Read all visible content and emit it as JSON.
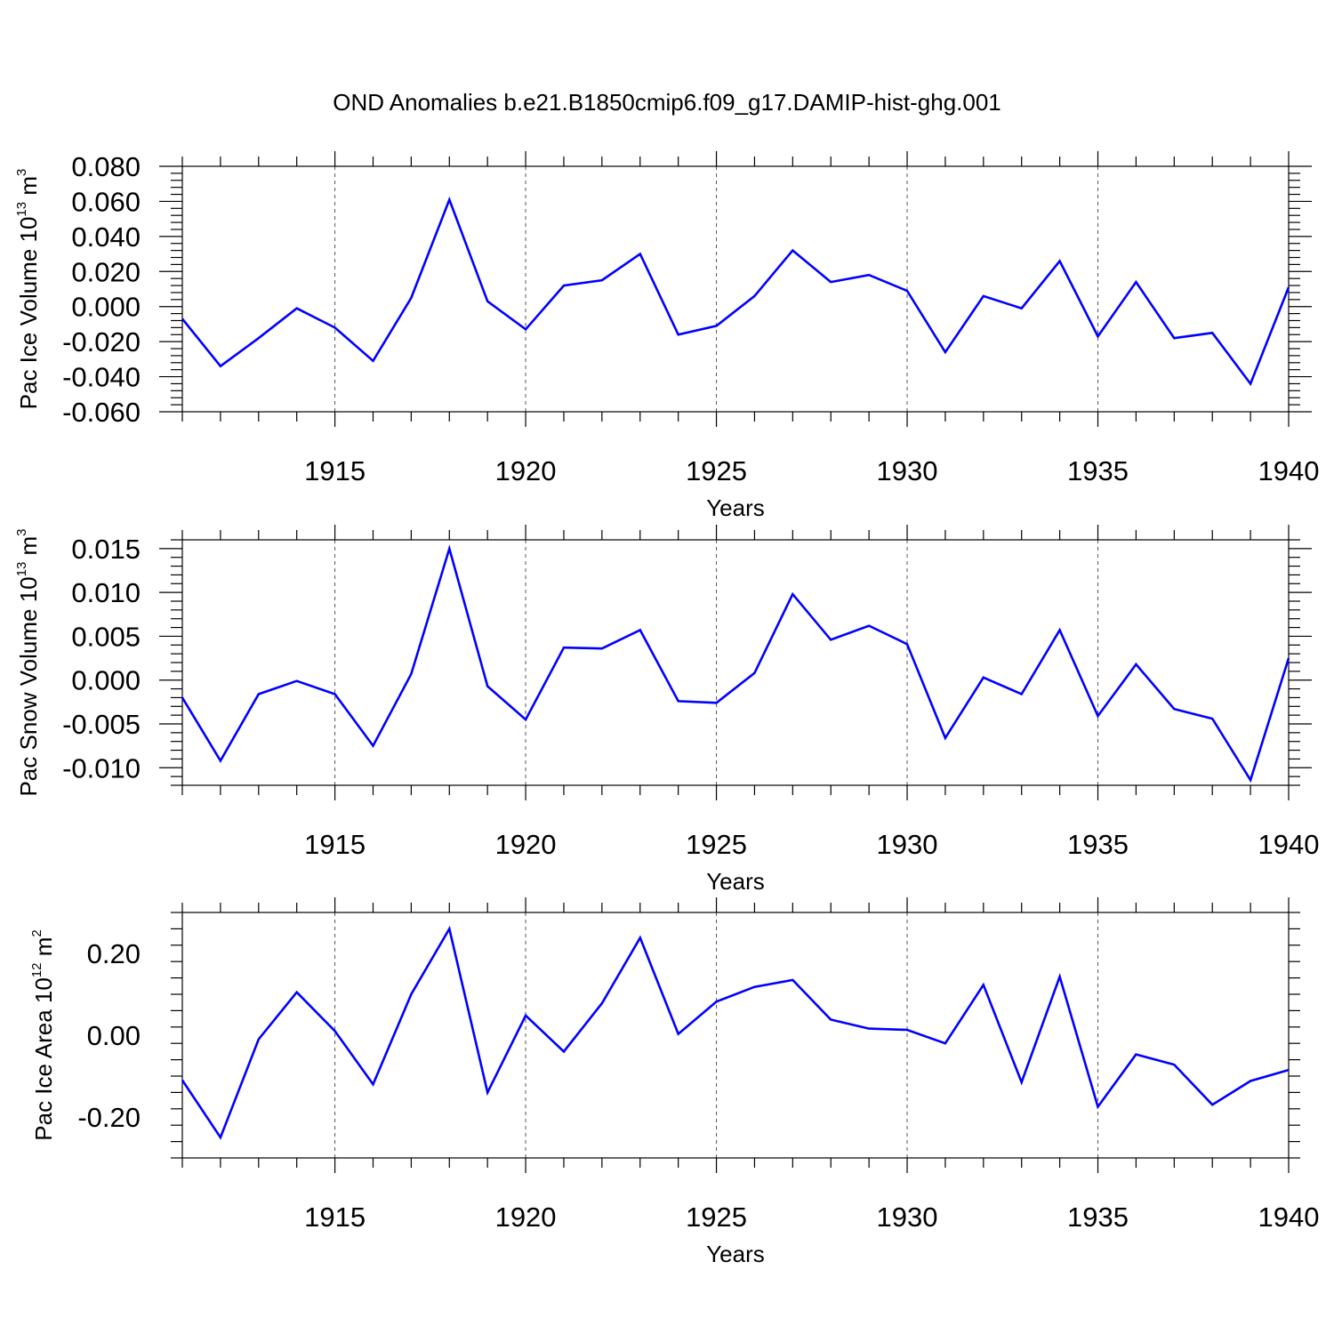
{
  "title": "OND Anomalies b.e21.B1850cmip6.f09_g17.DAMIP-hist-ghg.001",
  "colors": {
    "line": "#0000ff",
    "frame": "#000000",
    "grid": "#555555"
  },
  "chart_data": [
    {
      "type": "line",
      "xlabel": "Years",
      "ylabel_prefix": "Pac Ice Volume 10",
      "ylabel_exp": "13",
      "ylabel_unit": " m",
      "ylabel_unit_exp": "3",
      "xlim": [
        1911,
        1940
      ],
      "ylim": [
        -0.06,
        0.08
      ],
      "yticks": [
        -0.06,
        -0.04,
        -0.02,
        0.0,
        0.02,
        0.04,
        0.06,
        0.08
      ],
      "yticklabels": [
        "-0.060",
        "-0.040",
        "-0.020",
        "0.000",
        "0.020",
        "0.040",
        "0.060",
        "0.080"
      ],
      "xticks": [
        1915,
        1920,
        1925,
        1930,
        1935,
        1940
      ],
      "xticklabels": [
        "1915",
        "1920",
        "1925",
        "1930",
        "1935",
        "1940"
      ],
      "x": [
        1911,
        1912,
        1913,
        1914,
        1915,
        1916,
        1917,
        1918,
        1919,
        1920,
        1921,
        1922,
        1923,
        1924,
        1925,
        1926,
        1927,
        1928,
        1929,
        1930,
        1931,
        1932,
        1933,
        1934,
        1935,
        1936,
        1937,
        1938,
        1939,
        1940
      ],
      "values": [
        -0.007,
        -0.034,
        -0.018,
        -0.001,
        -0.012,
        -0.031,
        0.005,
        0.061,
        0.003,
        -0.013,
        0.012,
        0.015,
        0.03,
        -0.016,
        -0.011,
        0.006,
        0.032,
        0.014,
        0.018,
        0.009,
        -0.026,
        0.006,
        -0.001,
        0.026,
        -0.017,
        0.014,
        -0.018,
        -0.015,
        -0.044,
        0.011
      ]
    },
    {
      "type": "line",
      "xlabel": "Years",
      "ylabel_prefix": "Pac Snow Volume 10",
      "ylabel_exp": "13",
      "ylabel_unit": " m",
      "ylabel_unit_exp": "3",
      "xlim": [
        1911,
        1940
      ],
      "ylim": [
        -0.012,
        0.016
      ],
      "yticks": [
        -0.01,
        -0.005,
        0.0,
        0.005,
        0.01,
        0.015
      ],
      "yticklabels": [
        "-0.010",
        "-0.005",
        "0.000",
        "0.005",
        "0.010",
        "0.015"
      ],
      "xticks": [
        1915,
        1920,
        1925,
        1930,
        1935,
        1940
      ],
      "xticklabels": [
        "1915",
        "1920",
        "1925",
        "1930",
        "1935",
        "1940"
      ],
      "x": [
        1911,
        1912,
        1913,
        1914,
        1915,
        1916,
        1917,
        1918,
        1919,
        1920,
        1921,
        1922,
        1923,
        1924,
        1925,
        1926,
        1927,
        1928,
        1929,
        1930,
        1931,
        1932,
        1933,
        1934,
        1935,
        1936,
        1937,
        1938,
        1939,
        1940
      ],
      "values": [
        -0.002,
        -0.0092,
        -0.0016,
        -0.0001,
        -0.0016,
        -0.0075,
        0.0007,
        0.015,
        -0.0007,
        -0.0045,
        0.0037,
        0.0036,
        0.0057,
        -0.0024,
        -0.0026,
        0.0008,
        0.0098,
        0.0046,
        0.0062,
        0.0041,
        -0.0066,
        0.0003,
        -0.0016,
        0.0057,
        -0.0041,
        0.0018,
        -0.0033,
        -0.0044,
        -0.0114,
        0.0025
      ]
    },
    {
      "type": "line",
      "xlabel": "Years",
      "ylabel_prefix": "Pac Ice Area 10",
      "ylabel_exp": "12",
      "ylabel_unit": " m",
      "ylabel_unit_exp": "2",
      "xlim": [
        1911,
        1940
      ],
      "ylim": [
        -0.3,
        0.3
      ],
      "yticks": [
        -0.2,
        0.0,
        0.2
      ],
      "yticklabels": [
        "-0.20",
        "0.00",
        "0.20"
      ],
      "xticks": [
        1915,
        1920,
        1925,
        1930,
        1935,
        1940
      ],
      "xticklabels": [
        "1915",
        "1920",
        "1925",
        "1930",
        "1935",
        "1940"
      ],
      "x": [
        1911,
        1912,
        1913,
        1914,
        1915,
        1916,
        1917,
        1918,
        1919,
        1920,
        1921,
        1922,
        1923,
        1924,
        1925,
        1926,
        1927,
        1928,
        1929,
        1930,
        1931,
        1932,
        1933,
        1934,
        1935,
        1936,
        1937,
        1938,
        1939,
        1940
      ],
      "values": [
        -0.11,
        -0.25,
        -0.01,
        0.105,
        0.01,
        -0.12,
        0.1,
        0.26,
        -0.14,
        0.048,
        -0.04,
        0.078,
        0.238,
        0.003,
        0.082,
        0.118,
        0.135,
        0.038,
        0.016,
        0.013,
        -0.02,
        0.123,
        -0.115,
        0.143,
        -0.175,
        -0.047,
        -0.072,
        -0.17,
        -0.112,
        -0.085
      ]
    }
  ]
}
